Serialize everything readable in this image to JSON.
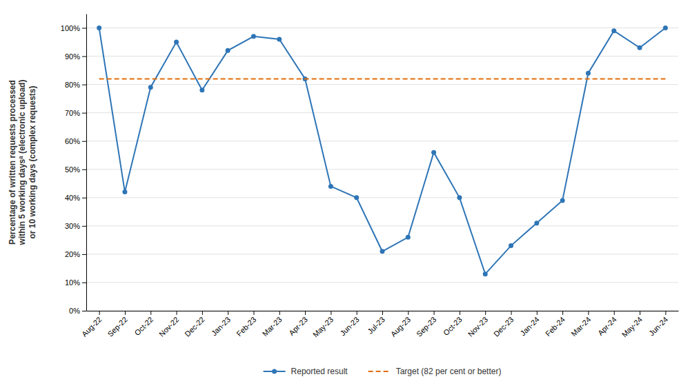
{
  "chart_data": {
    "type": "line",
    "categories": [
      "Aug-22",
      "Sep-22",
      "Oct-22",
      "Nov-22",
      "Dec-22",
      "Jan-23",
      "Feb-23",
      "Mar-23",
      "Apr-23",
      "May-23",
      "Jun-23",
      "Jul-23",
      "Aug-23",
      "Sep-23",
      "Oct-23",
      "Nov-23",
      "Dec-23",
      "Jan-24",
      "Feb-24",
      "Mar-24",
      "Apr-24",
      "May-24",
      "Jun-24"
    ],
    "series": [
      {
        "name": "Reported result",
        "color": "#2E75B6",
        "marker": "circle",
        "line_style": "solid",
        "values": [
          100,
          42,
          79,
          95,
          78,
          92,
          97,
          96,
          82,
          44,
          40,
          21,
          26,
          56,
          40,
          13,
          23,
          31,
          39,
          84,
          99,
          93,
          100
        ]
      },
      {
        "name": "Target (82 per cent or better)",
        "color": "#E36C09",
        "line_style": "dashed",
        "values": [
          82,
          82,
          82,
          82,
          82,
          82,
          82,
          82,
          82,
          82,
          82,
          82,
          82,
          82,
          82,
          82,
          82,
          82,
          82,
          82,
          82,
          82,
          82
        ]
      }
    ],
    "y_label": "Percentage of written requests processed\nwithin 5 working daysᵃ (electronic upload)\nor 10 working days (complex requests)",
    "ylim": [
      0,
      105
    ],
    "yticks": [
      {
        "value": 0,
        "label": "0%"
      },
      {
        "value": 10,
        "label": "10%"
      },
      {
        "value": 20,
        "label": "20%"
      },
      {
        "value": 30,
        "label": "30%"
      },
      {
        "value": 40,
        "label": "40%"
      },
      {
        "value": 50,
        "label": "50%"
      },
      {
        "value": 60,
        "label": "60%"
      },
      {
        "value": 70,
        "label": "70%"
      },
      {
        "value": 80,
        "label": "80%"
      },
      {
        "value": 90,
        "label": "90%"
      },
      {
        "value": 100,
        "label": "100%"
      }
    ],
    "grid": true,
    "legend": "bottom"
  }
}
